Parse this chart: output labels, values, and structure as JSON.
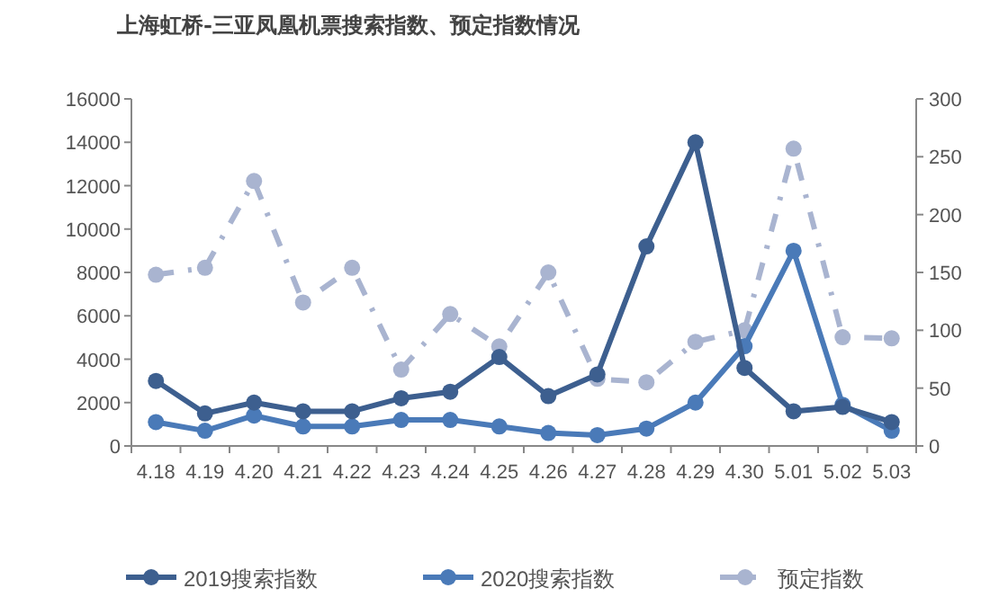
{
  "chart_data": {
    "type": "line",
    "title": "上海虹桥-三亚凤凰机票搜索指数、预定指数情况",
    "categories": [
      "4.18",
      "4.19",
      "4.20",
      "4.21",
      "4.22",
      "4.23",
      "4.24",
      "4.25",
      "4.26",
      "4.27",
      "4.28",
      "4.29",
      "4.30",
      "5.01",
      "5.02",
      "5.03"
    ],
    "series": [
      {
        "name": "2019搜索指数",
        "color": "#3d5f8f",
        "values": [
          3000,
          1500,
          2000,
          1600,
          1600,
          2200,
          2500,
          4100,
          2300,
          3300,
          9200,
          14000,
          3600,
          1600,
          1800,
          1100
        ]
      },
      {
        "name": "2020搜索指数",
        "color": "#4a7ab8",
        "values": [
          1100,
          700,
          1400,
          900,
          900,
          1200,
          1200,
          900,
          600,
          500,
          800,
          2000,
          4600,
          9000,
          1900,
          700
        ]
      },
      {
        "name": "预定指数",
        "color": "#a9b4d0",
        "axis": "y2",
        "line_style": "dashed",
        "values": [
          148,
          154,
          229,
          124,
          154,
          66,
          114,
          86,
          150,
          58,
          55,
          90,
          100,
          257,
          94,
          93
        ]
      }
    ],
    "ylim": [
      0,
      16000
    ],
    "yticks": [
      0,
      2000,
      4000,
      6000,
      8000,
      10000,
      12000,
      14000,
      16000
    ],
    "y2lim": [
      0,
      300
    ],
    "y2ticks": [
      0,
      50,
      100,
      150,
      200,
      250,
      300
    ],
    "marker": "circle",
    "line_style": "solid",
    "legend": "bottom",
    "grid": false
  }
}
